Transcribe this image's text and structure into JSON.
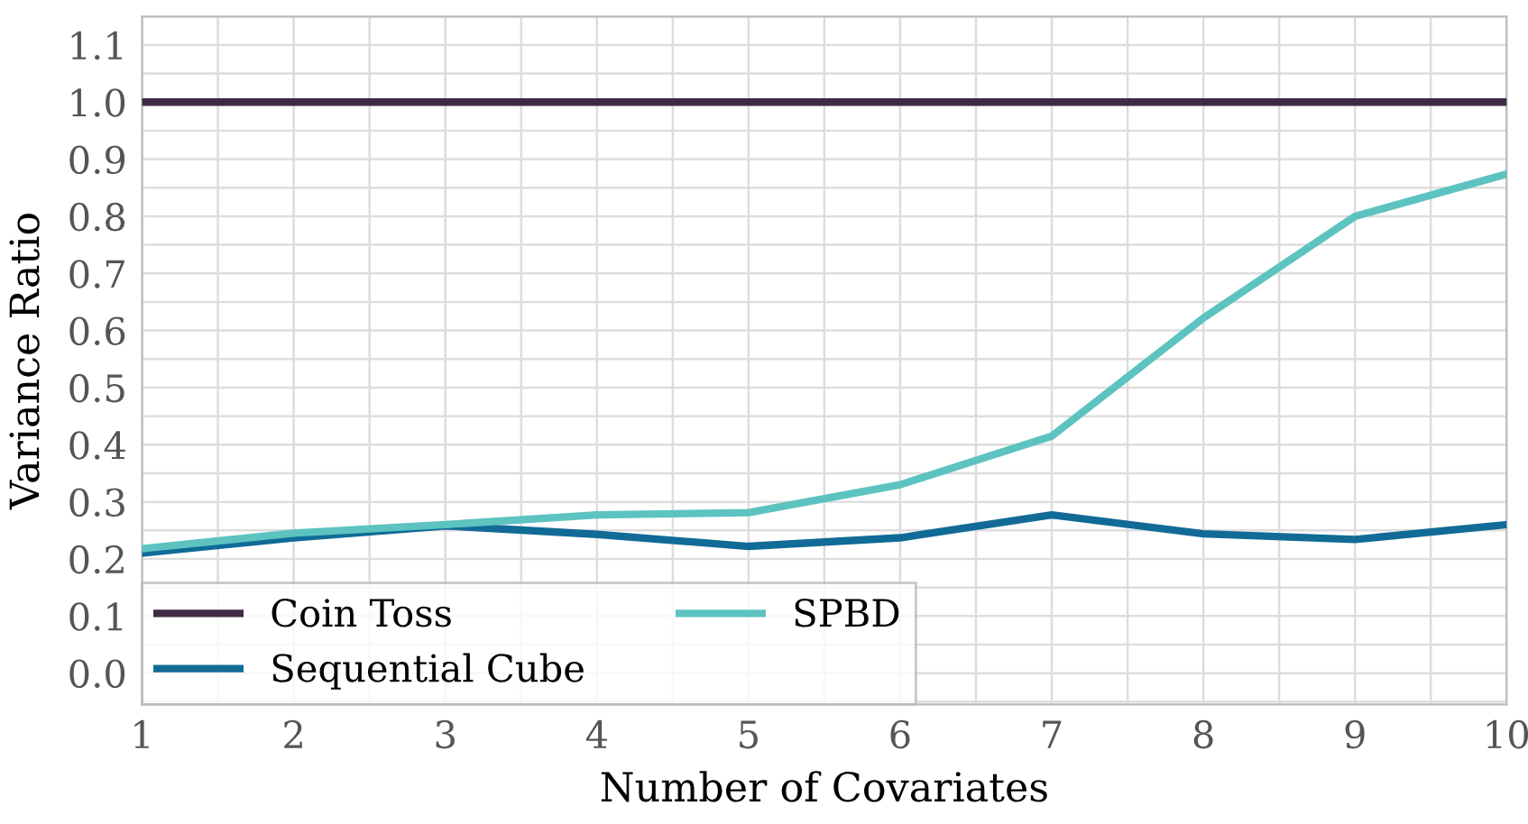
{
  "chart_data": {
    "type": "line",
    "xlabel": "Number of Covariates",
    "ylabel": "Variance Ratio",
    "x": [
      1,
      2,
      3,
      4,
      5,
      6,
      7,
      8,
      9,
      10
    ],
    "series": [
      {
        "name": "Coin Toss",
        "color": "#3f2a45",
        "values": [
          1.0,
          1.0,
          1.0,
          1.0,
          1.0,
          1.0,
          1.0,
          1.0,
          1.0,
          1.0
        ]
      },
      {
        "name": "Sequential Cube",
        "color": "#116b96",
        "values": [
          0.21,
          0.237,
          0.258,
          0.243,
          0.222,
          0.237,
          0.277,
          0.244,
          0.234,
          0.26
        ]
      },
      {
        "name": "SPBD",
        "color": "#5cc3c0",
        "values": [
          0.218,
          0.245,
          0.26,
          0.277,
          0.281,
          0.33,
          0.415,
          0.622,
          0.8,
          0.874
        ]
      }
    ],
    "xlim": [
      1,
      10
    ],
    "xticks": [
      1,
      2,
      3,
      4,
      5,
      6,
      7,
      8,
      9,
      10
    ],
    "ylim": [
      -0.055,
      1.15
    ],
    "yticks": [
      {
        "value": 0,
        "label": "0.0"
      },
      0.1,
      0.2,
      0.3,
      0.4,
      0.5,
      0.6,
      0.7,
      0.8,
      0.9,
      {
        "value": 1,
        "label": "1.0"
      },
      1.1
    ],
    "grid": true,
    "legend": "bottom left",
    "marker": "none",
    "line_style": "solid"
  }
}
